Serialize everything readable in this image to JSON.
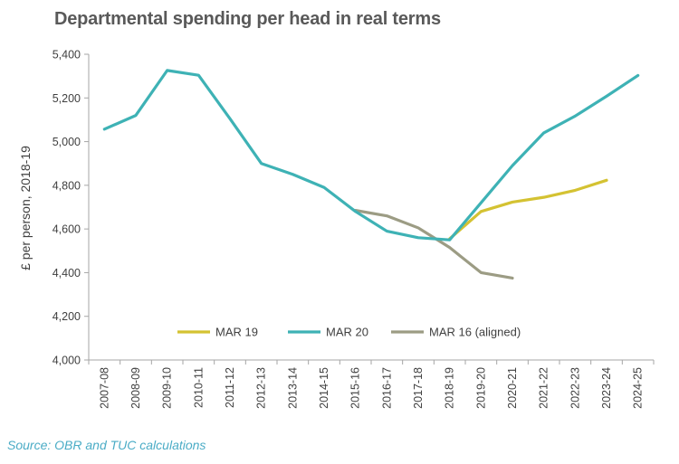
{
  "title": "Departmental spending per head in real terms",
  "source": "Source: OBR and TUC calculations",
  "colors": {
    "mar19": "#d4c232",
    "mar20": "#3eb2b5",
    "mar16": "#9c9c84",
    "axis": "#a6a6a6",
    "text": "#404040",
    "source": "#4bacc6"
  },
  "chart_data": {
    "type": "line",
    "title": "Departmental spending per head in real terms",
    "xlabel": "",
    "ylabel": "£ per person, 2018-19",
    "ylim": [
      4000,
      5400
    ],
    "yticks": [
      4000,
      4200,
      4400,
      4600,
      4800,
      5000,
      5200,
      5400
    ],
    "ytick_labels": [
      "4,000",
      "4,200",
      "4,400",
      "4,600",
      "4,800",
      "5,000",
      "5,200",
      "5,400"
    ],
    "grid": false,
    "legend_position": "bottom-inside",
    "categories": [
      "2007-08",
      "2008-09",
      "2009-10",
      "2010-11",
      "2011-12",
      "2012-13",
      "2013-14",
      "2014-15",
      "2015-16",
      "2016-17",
      "2017-18",
      "2018-19",
      "2019-20",
      "2020-21",
      "2021-22",
      "2022-23",
      "2023-24",
      "2024-25"
    ],
    "series": [
      {
        "name": "MAR 19",
        "color": "#d4c232",
        "values": [
          null,
          null,
          null,
          null,
          null,
          null,
          null,
          null,
          null,
          null,
          null,
          4555,
          4680,
          4723,
          4745,
          4777,
          4823,
          null
        ]
      },
      {
        "name": "MAR 20",
        "color": "#3eb2b5",
        "values": [
          5057,
          5120,
          5326,
          5304,
          5105,
          4900,
          4850,
          4790,
          4680,
          4590,
          4560,
          4550,
          4720,
          4890,
          5040,
          5117,
          5208,
          5303
        ]
      },
      {
        "name": "MAR 16 (aligned)",
        "color": "#9c9c84",
        "values": [
          null,
          null,
          null,
          null,
          null,
          null,
          null,
          null,
          4685,
          4660,
          4605,
          4515,
          4400,
          4375,
          null,
          null,
          null,
          null
        ]
      }
    ]
  }
}
